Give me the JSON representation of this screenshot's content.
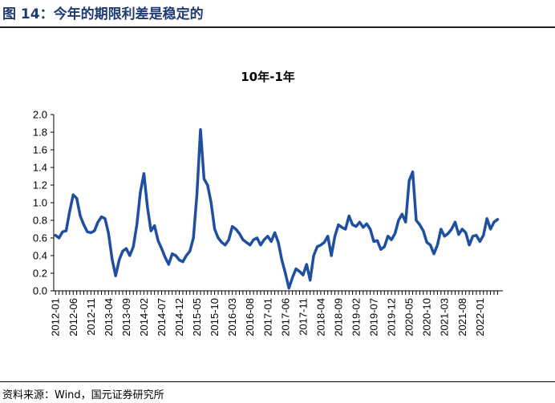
{
  "header": {
    "figure_title": "图 14：今年的期限利差是稳定的"
  },
  "footer": {
    "source": "资料来源：Wind，国元证券研究所"
  },
  "colors": {
    "line": "#1f4fa0",
    "title": "#1f3b73",
    "axis": "#000000"
  },
  "chart_data": {
    "type": "line",
    "title": "10年-1年",
    "xlabel": "",
    "ylabel": "",
    "ylim": [
      0,
      2.0
    ],
    "yticks": [
      0.0,
      0.2,
      0.4,
      0.6,
      0.8,
      1.0,
      1.2,
      1.4,
      1.6,
      1.8,
      2.0
    ],
    "ytick_labels": [
      "0.0",
      "0.2",
      "0.4",
      "0.6",
      "0.8",
      "1.0",
      "1.2",
      "1.4",
      "1.6",
      "1.8",
      "2.0"
    ],
    "xtick_labels": [
      "2012-01",
      "2012-06",
      "2012-11",
      "2013-04",
      "2013-09",
      "2014-02",
      "2014-07",
      "2014-12",
      "2015-05",
      "2015-10",
      "2016-03",
      "2016-08",
      "2017-01",
      "2017-06",
      "2017-11",
      "2018-04",
      "2018-09",
      "2019-02",
      "2019-07",
      "2019-12",
      "2020-05",
      "2020-10",
      "2021-03",
      "2021-08",
      "2022-01"
    ],
    "grid": false,
    "legend": "none",
    "x": [
      "2012-01",
      "2012-02",
      "2012-03",
      "2012-04",
      "2012-05",
      "2012-06",
      "2012-07",
      "2012-08",
      "2012-09",
      "2012-10",
      "2012-11",
      "2012-12",
      "2013-01",
      "2013-02",
      "2013-03",
      "2013-04",
      "2013-05",
      "2013-06",
      "2013-07",
      "2013-08",
      "2013-09",
      "2013-10",
      "2013-11",
      "2013-12",
      "2014-01",
      "2014-02",
      "2014-03",
      "2014-04",
      "2014-05",
      "2014-06",
      "2014-07",
      "2014-08",
      "2014-09",
      "2014-10",
      "2014-11",
      "2014-12",
      "2015-01",
      "2015-02",
      "2015-03",
      "2015-04",
      "2015-05",
      "2015-06",
      "2015-07",
      "2015-08",
      "2015-09",
      "2015-10",
      "2015-11",
      "2015-12",
      "2016-01",
      "2016-02",
      "2016-03",
      "2016-04",
      "2016-05",
      "2016-06",
      "2016-07",
      "2016-08",
      "2016-09",
      "2016-10",
      "2016-11",
      "2016-12",
      "2017-01",
      "2017-02",
      "2017-03",
      "2017-04",
      "2017-05",
      "2017-06",
      "2017-07",
      "2017-08",
      "2017-09",
      "2017-10",
      "2017-11",
      "2017-12",
      "2018-01",
      "2018-02",
      "2018-03",
      "2018-04",
      "2018-05",
      "2018-06",
      "2018-07",
      "2018-08",
      "2018-09",
      "2018-10",
      "2018-11",
      "2018-12",
      "2019-01",
      "2019-02",
      "2019-03",
      "2019-04",
      "2019-05",
      "2019-06",
      "2019-07",
      "2019-08",
      "2019-09",
      "2019-10",
      "2019-11",
      "2019-12",
      "2020-01",
      "2020-02",
      "2020-03",
      "2020-04",
      "2020-05",
      "2020-06",
      "2020-07",
      "2020-08",
      "2020-09",
      "2020-10",
      "2020-11",
      "2020-12",
      "2021-01",
      "2021-02",
      "2021-03",
      "2021-04",
      "2021-05",
      "2021-06",
      "2021-07",
      "2021-08",
      "2021-09",
      "2021-10",
      "2021-11",
      "2021-12",
      "2022-01",
      "2022-02",
      "2022-03",
      "2022-04",
      "2022-05",
      "2022-06"
    ],
    "series": [
      {
        "values": [
          0.63,
          0.6,
          0.67,
          0.68,
          0.9,
          1.09,
          1.05,
          0.85,
          0.75,
          0.67,
          0.66,
          0.68,
          0.78,
          0.84,
          0.82,
          0.65,
          0.36,
          0.17,
          0.35,
          0.45,
          0.48,
          0.4,
          0.5,
          0.75,
          1.12,
          1.33,
          0.95,
          0.68,
          0.74,
          0.57,
          0.48,
          0.38,
          0.3,
          0.42,
          0.4,
          0.35,
          0.33,
          0.4,
          0.45,
          0.6,
          1.1,
          1.83,
          1.27,
          1.2,
          1.0,
          0.7,
          0.6,
          0.55,
          0.52,
          0.58,
          0.73,
          0.7,
          0.65,
          0.58,
          0.55,
          0.52,
          0.58,
          0.6,
          0.52,
          0.58,
          0.62,
          0.56,
          0.66,
          0.55,
          0.35,
          0.2,
          0.03,
          0.15,
          0.25,
          0.22,
          0.18,
          0.3,
          0.12,
          0.4,
          0.5,
          0.52,
          0.55,
          0.62,
          0.4,
          0.62,
          0.75,
          0.72,
          0.7,
          0.85,
          0.75,
          0.73,
          0.78,
          0.72,
          0.76,
          0.7,
          0.56,
          0.57,
          0.47,
          0.5,
          0.62,
          0.58,
          0.65,
          0.8,
          0.87,
          0.78,
          1.25,
          1.35,
          0.8,
          0.75,
          0.68,
          0.55,
          0.52,
          0.42,
          0.52,
          0.7,
          0.62,
          0.65,
          0.7,
          0.78,
          0.64,
          0.7,
          0.66,
          0.52,
          0.62,
          0.63,
          0.56,
          0.63,
          0.82,
          0.7,
          0.78,
          0.81
        ]
      }
    ]
  }
}
